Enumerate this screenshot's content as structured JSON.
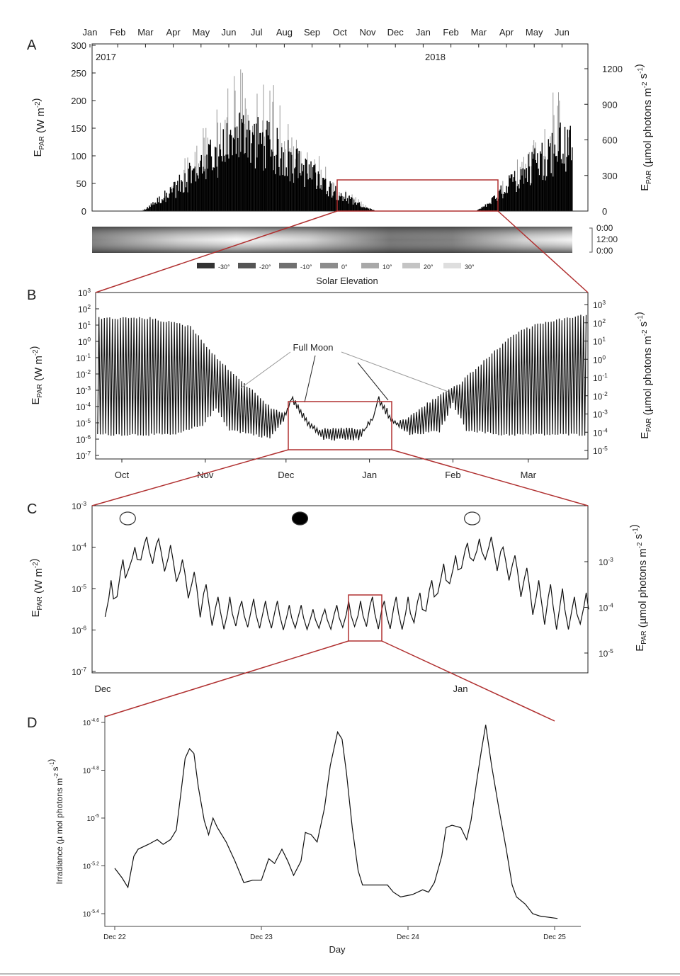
{
  "colors": {
    "zoom_box": "#b03030",
    "line": "#111111",
    "spike_gray": "#9a9a9a"
  },
  "chart_data": [
    {
      "panel": "A",
      "type": "area",
      "panel_label": "A",
      "year_labels": [
        "2017",
        "2018"
      ],
      "x_tick_labels": [
        "Jan",
        "Feb",
        "Mar",
        "Apr",
        "May",
        "Jun",
        "Jul",
        "Aug",
        "Sep",
        "Oct",
        "Nov",
        "Dec",
        "Jan",
        "Feb",
        "Mar",
        "Apr",
        "May",
        "Jun"
      ],
      "y_ticks": [
        0,
        50,
        100,
        150,
        200,
        250,
        300
      ],
      "ylim": [
        0,
        300
      ],
      "y2_ticks": [
        0,
        300,
        600,
        900,
        1200
      ],
      "ylabel_parts": [
        [
          "E",
          ""
        ],
        [
          "PAR",
          "sub"
        ],
        [
          " (W m",
          ""
        ],
        [
          "-2",
          "sup"
        ],
        [
          ")",
          ""
        ]
      ],
      "y2label_parts": [
        [
          "E",
          ""
        ],
        [
          "PAR",
          "sub"
        ],
        [
          " (µmol photons m",
          ""
        ],
        [
          "-2",
          "sup"
        ],
        [
          " s",
          ""
        ],
        [
          "-1",
          "sup"
        ],
        [
          ")",
          ""
        ]
      ],
      "x_unit": "months since Jan 2017",
      "daily_max_envelope": [
        [
          0,
          0
        ],
        [
          1.8,
          0
        ],
        [
          2.1,
          8
        ],
        [
          2.5,
          30
        ],
        [
          3,
          60
        ],
        [
          3.5,
          110
        ],
        [
          4,
          150
        ],
        [
          4.5,
          200
        ],
        [
          5,
          235
        ],
        [
          5.4,
          275
        ],
        [
          6,
          250
        ],
        [
          6.5,
          240
        ],
        [
          7,
          190
        ],
        [
          7.5,
          160
        ],
        [
          8,
          120
        ],
        [
          8.5,
          90
        ],
        [
          9,
          55
        ],
        [
          9.5,
          30
        ],
        [
          10,
          8
        ],
        [
          10.3,
          0
        ],
        [
          13.8,
          0
        ],
        [
          14.2,
          10
        ],
        [
          14.6,
          30
        ],
        [
          15,
          75
        ],
        [
          15.5,
          110
        ],
        [
          16,
          150
        ],
        [
          16.5,
          175
        ],
        [
          16.8,
          260
        ],
        [
          17.4,
          200
        ]
      ],
      "daily_mean_envelope": [
        [
          0,
          0
        ],
        [
          1.9,
          0
        ],
        [
          2.2,
          10
        ],
        [
          3,
          35
        ],
        [
          4,
          75
        ],
        [
          5,
          110
        ],
        [
          5.5,
          130
        ],
        [
          6,
          120
        ],
        [
          7,
          95
        ],
        [
          8,
          60
        ],
        [
          9,
          30
        ],
        [
          9.8,
          8
        ],
        [
          10.3,
          0
        ],
        [
          13.9,
          0
        ],
        [
          14.3,
          10
        ],
        [
          15,
          40
        ],
        [
          16,
          80
        ],
        [
          17,
          110
        ],
        [
          17.4,
          115
        ]
      ]
    },
    {
      "panel": "solar-elevation",
      "type": "heatmap",
      "time_ticks": [
        "0:00",
        "12:00",
        "0:00"
      ],
      "legend_title": "Solar Elevation",
      "legend": [
        {
          "label": "-30°",
          "color": "#333333"
        },
        {
          "label": "-20°",
          "color": "#555555"
        },
        {
          "label": "-10°",
          "color": "#707070"
        },
        {
          "label": "0°",
          "color": "#8c8c8c"
        },
        {
          "label": "10°",
          "color": "#a8a8a8"
        },
        {
          "label": "20°",
          "color": "#c4c4c4"
        },
        {
          "label": "30°",
          "color": "#dedede"
        }
      ]
    },
    {
      "panel": "B",
      "type": "line",
      "panel_label": "B",
      "x_unit": "days since Oct 1 2017",
      "x_tick_labels": [
        "Oct",
        "Nov",
        "Dec",
        "Jan",
        "Feb",
        "Mar"
      ],
      "y_scale": "log10",
      "y_ticks": [
        3,
        2,
        1,
        0,
        -1,
        -2,
        -3,
        -4,
        -5,
        -6,
        -7
      ],
      "ylim": [
        -7,
        3
      ],
      "y2_ticks": [
        3,
        2,
        1,
        0,
        -1,
        -2,
        -3,
        -4,
        -5
      ],
      "annotation": "Full Moon",
      "full_moon_days": [
        35,
        63,
        93,
        123
      ],
      "ylabel_parts": [
        [
          "E",
          ""
        ],
        [
          "PAR",
          "sub"
        ],
        [
          " (W m",
          ""
        ],
        [
          "-2",
          "sup"
        ],
        [
          ")",
          ""
        ]
      ],
      "y2label_parts": [
        [
          "E",
          ""
        ],
        [
          "PAR",
          "sub"
        ],
        [
          " (µmol photons m",
          ""
        ],
        [
          "-2",
          "sup"
        ],
        [
          " s",
          ""
        ],
        [
          "-1",
          "sup"
        ],
        [
          ")",
          ""
        ]
      ],
      "daily_max_log": [
        [
          -9,
          1.5
        ],
        [
          10,
          1.5
        ],
        [
          25,
          1
        ],
        [
          35,
          -1
        ],
        [
          45,
          -2.5
        ],
        [
          55,
          -4
        ],
        [
          62,
          -4.5
        ],
        [
          70,
          -5.3
        ],
        [
          95,
          -5.3
        ],
        [
          105,
          -4.7
        ],
        [
          115,
          -3.5
        ],
        [
          125,
          -2.5
        ],
        [
          135,
          -1
        ],
        [
          145,
          0.5
        ],
        [
          155,
          1.2
        ],
        [
          172,
          1.7
        ]
      ],
      "nightly_min_log": [
        [
          -9,
          -5.8
        ],
        [
          20,
          -5.8
        ],
        [
          30,
          -5.2
        ],
        [
          35,
          -4.2
        ],
        [
          40,
          -5.5
        ],
        [
          55,
          -6
        ],
        [
          60,
          -5
        ],
        [
          63,
          -3.7
        ],
        [
          68,
          -5
        ],
        [
          75,
          -6.1
        ],
        [
          88,
          -6.1
        ],
        [
          93,
          -4.9
        ],
        [
          95,
          -3.8
        ],
        [
          100,
          -5
        ],
        [
          107,
          -5.8
        ],
        [
          118,
          -5.6
        ],
        [
          123,
          -3.9
        ],
        [
          128,
          -5.5
        ],
        [
          140,
          -5.8
        ],
        [
          172,
          -5.8
        ]
      ]
    },
    {
      "panel": "C",
      "type": "line",
      "panel_label": "C",
      "x_unit": "days since Dec 1 2017",
      "x_tick_labels": [
        "Dec",
        "Jan"
      ],
      "y_scale": "log10",
      "y_ticks": [
        -3,
        -4,
        -5,
        -6,
        -7
      ],
      "ylim": [
        -7,
        -3
      ],
      "y2_ticks": [
        -3,
        -4,
        -5
      ],
      "moon_phases": [
        {
          "day": 3,
          "phase": "full"
        },
        {
          "day": 17.5,
          "phase": "new"
        },
        {
          "day": 32,
          "phase": "full"
        }
      ],
      "ylabel_parts": [
        [
          "E",
          ""
        ],
        [
          "PAR",
          "sub"
        ],
        [
          " (W m",
          ""
        ],
        [
          "-2",
          "sup"
        ],
        [
          ")",
          ""
        ]
      ],
      "y2label_parts": [
        [
          "E",
          ""
        ],
        [
          "PAR",
          "sub"
        ],
        [
          " (µmol photons m",
          ""
        ],
        [
          "-2",
          "sup"
        ],
        [
          " s",
          ""
        ],
        [
          "-1",
          "sup"
        ],
        [
          ")",
          ""
        ]
      ],
      "daily_max_log": [
        -4.8,
        -4.3,
        -4.0,
        -3.75,
        -3.8,
        -3.95,
        -4.3,
        -4.6,
        -4.9,
        -5.2,
        -5.2,
        -5.3,
        -5.25,
        -5.3,
        -5.3,
        -5.4,
        -5.4,
        -5.5,
        -5.5,
        -5.4,
        -5.3,
        -5.3,
        -5.2,
        -5.3,
        -5.2,
        -5.2,
        -5.1,
        -4.8,
        -4.4,
        -4.2,
        -3.9,
        -3.8,
        -3.75,
        -4.0,
        -4.2,
        -4.5,
        -4.8,
        -4.9,
        -5.0,
        -5.2,
        -5.1
      ],
      "daily_min_log": [
        -5.7,
        -5.2,
        -4.6,
        -4.4,
        -4.4,
        -4.6,
        -4.9,
        -5.3,
        -5.7,
        -5.9,
        -6.0,
        -6.0,
        -6.0,
        -6.0,
        -6.0,
        -6.0,
        -6.0,
        -6.0,
        -6.0,
        -6.0,
        -6.0,
        -6.0,
        -6.0,
        -6.0,
        -6.0,
        -6.0,
        -5.9,
        -5.6,
        -5.2,
        -4.9,
        -4.6,
        -4.4,
        -4.4,
        -4.6,
        -4.9,
        -5.3,
        -5.7,
        -5.9,
        -6.0,
        -6.0,
        -5.9
      ]
    },
    {
      "panel": "D",
      "type": "line",
      "panel_label": "D",
      "x_unit": "days since Dec 22 2017",
      "x_tick_labels": [
        "Dec 22",
        "Dec 23",
        "Dec 24",
        "Dec 25"
      ],
      "xlabel": "Day",
      "y_scale": "log10",
      "y_ticks": [
        -4.6,
        -4.8,
        -5,
        -5.2,
        -5.4
      ],
      "y_tick_exponents": [
        "-4.6",
        "-4.8",
        "-5",
        "-5.2",
        "-5.4"
      ],
      "ylim": [
        -5.45,
        -4.58
      ],
      "ylabel_parts": [
        [
          "Irradiance (µ mol photons m",
          ""
        ],
        [
          "-2",
          "sup"
        ],
        [
          " s",
          ""
        ],
        [
          "-1",
          "sup"
        ],
        [
          ")",
          ""
        ]
      ],
      "points": [
        [
          0.0,
          -5.21
        ],
        [
          0.05,
          -5.25
        ],
        [
          0.09,
          -5.29
        ],
        [
          0.13,
          -5.16
        ],
        [
          0.16,
          -5.13
        ],
        [
          0.23,
          -5.11
        ],
        [
          0.29,
          -5.09
        ],
        [
          0.33,
          -5.11
        ],
        [
          0.38,
          -5.09
        ],
        [
          0.42,
          -5.05
        ],
        [
          0.45,
          -4.9
        ],
        [
          0.48,
          -4.75
        ],
        [
          0.51,
          -4.71
        ],
        [
          0.54,
          -4.73
        ],
        [
          0.57,
          -4.87
        ],
        [
          0.61,
          -5.01
        ],
        [
          0.64,
          -5.07
        ],
        [
          0.67,
          -5.0
        ],
        [
          0.7,
          -5.04
        ],
        [
          0.76,
          -5.1
        ],
        [
          0.82,
          -5.18
        ],
        [
          0.88,
          -5.27
        ],
        [
          0.94,
          -5.26
        ],
        [
          1.0,
          -5.26
        ],
        [
          1.05,
          -5.17
        ],
        [
          1.09,
          -5.19
        ],
        [
          1.14,
          -5.13
        ],
        [
          1.18,
          -5.18
        ],
        [
          1.22,
          -5.24
        ],
        [
          1.27,
          -5.18
        ],
        [
          1.3,
          -5.06
        ],
        [
          1.34,
          -5.07
        ],
        [
          1.38,
          -5.1
        ],
        [
          1.43,
          -4.96
        ],
        [
          1.47,
          -4.78
        ],
        [
          1.52,
          -4.64
        ],
        [
          1.55,
          -4.67
        ],
        [
          1.58,
          -4.81
        ],
        [
          1.62,
          -5.04
        ],
        [
          1.66,
          -5.22
        ],
        [
          1.69,
          -5.28
        ],
        [
          1.78,
          -5.28
        ],
        [
          1.86,
          -5.28
        ],
        [
          1.9,
          -5.31
        ],
        [
          1.95,
          -5.33
        ],
        [
          2.03,
          -5.32
        ],
        [
          2.1,
          -5.3
        ],
        [
          2.14,
          -5.31
        ],
        [
          2.18,
          -5.27
        ],
        [
          2.23,
          -5.16
        ],
        [
          2.26,
          -5.04
        ],
        [
          2.3,
          -5.03
        ],
        [
          2.36,
          -5.04
        ],
        [
          2.4,
          -5.09
        ],
        [
          2.43,
          -5.01
        ],
        [
          2.47,
          -4.84
        ],
        [
          2.5,
          -4.72
        ],
        [
          2.53,
          -4.61
        ],
        [
          2.57,
          -4.78
        ],
        [
          2.62,
          -4.96
        ],
        [
          2.67,
          -5.13
        ],
        [
          2.71,
          -5.28
        ],
        [
          2.74,
          -5.33
        ],
        [
          2.8,
          -5.36
        ],
        [
          2.85,
          -5.4
        ],
        [
          2.9,
          -5.41
        ],
        [
          3.02,
          -5.42
        ]
      ]
    }
  ]
}
